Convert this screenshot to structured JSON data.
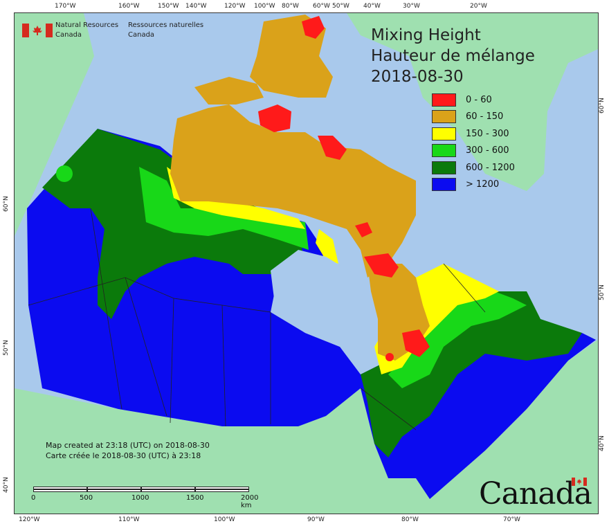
{
  "agency": {
    "name_en": "Natural Resources",
    "name_en2": "Canada",
    "name_fr": "Ressources naturelles",
    "name_fr2": "Canada"
  },
  "title": {
    "line1": "Mixing Height",
    "line2": "Hauteur de mélange",
    "line3": "2018-08-30"
  },
  "legend": [
    {
      "label": "0 - 60",
      "color": "#ff1a1a"
    },
    {
      "label": "60 - 150",
      "color": "#daa21a"
    },
    {
      "label": "150 - 300",
      "color": "#ffff00"
    },
    {
      "label": "300 - 600",
      "color": "#18d818"
    },
    {
      "label": "600 - 1200",
      "color": "#0b7a0b"
    },
    {
      "label": "> 1200",
      "color": "#0b0bf0"
    }
  ],
  "created": {
    "en": "Map created at 23:18 (UTC) on 2018-08-30",
    "fr": "Carte créée le 2018-08-30 (UTC) à 23:18"
  },
  "scale": {
    "labels": [
      "0",
      "500",
      "1000",
      "1500",
      "2000  km"
    ]
  },
  "ticks": {
    "top": [
      "170°W",
      "160°W",
      "150°W",
      "140°W",
      "120°W",
      "100°W",
      "80°W",
      "60°W",
      "50°W",
      "40°W",
      "30°W",
      "20°W"
    ],
    "bottom": [
      "120°W",
      "110°W",
      "100°W",
      "90°W",
      "80°W",
      "70°W"
    ],
    "left": [
      "60°N",
      "50°N",
      "40°N"
    ],
    "right": [
      "60°N",
      "50°N",
      "40°N"
    ]
  },
  "wordmark": "Canada",
  "colors": {
    "ocean": "#a9c9ec",
    "land": "#9fe0b0",
    "boundary": "#222222"
  }
}
